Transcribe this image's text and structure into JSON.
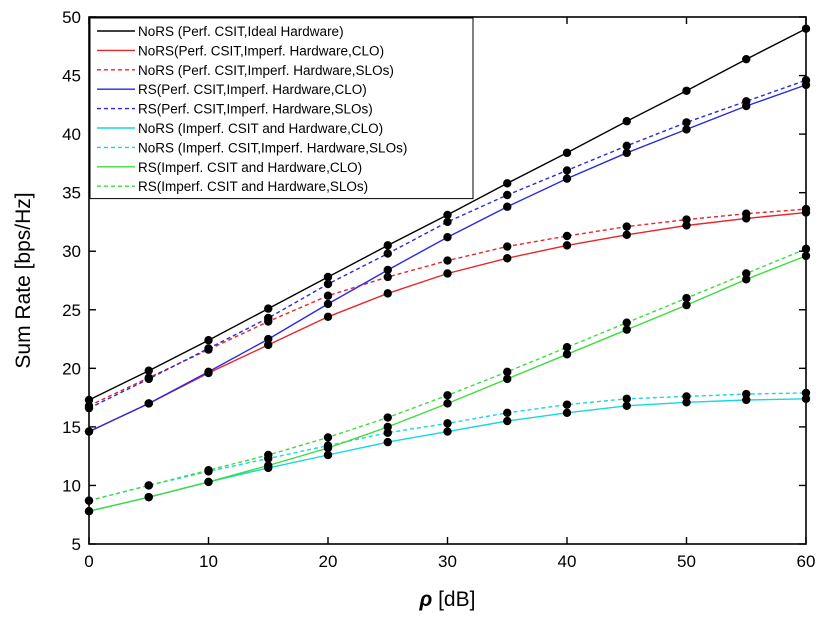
{
  "chart_data": {
    "type": "line",
    "title": "",
    "xlabel_symbol": "ρ",
    "xlabel_unit": " [dB]",
    "ylabel": "Sum Rate [bps/Hz]",
    "xlim": [
      0,
      60
    ],
    "ylim": [
      5,
      50
    ],
    "xticks": [
      0,
      10,
      20,
      30,
      40,
      50,
      60
    ],
    "yticks": [
      5,
      10,
      15,
      20,
      25,
      30,
      35,
      40,
      45,
      50
    ],
    "grid": false,
    "legend_position": "top-left",
    "x": [
      0,
      5,
      10,
      15,
      20,
      25,
      30,
      35,
      40,
      45,
      50,
      55,
      60
    ],
    "series": [
      {
        "name": "NoRS (Perf. CSIT,Ideal Hardware)",
        "color": "#000000",
        "dash": "solid",
        "values": [
          17.3,
          19.8,
          22.4,
          25.1,
          27.8,
          30.5,
          33.1,
          35.8,
          38.4,
          41.1,
          43.7,
          46.4,
          49.0
        ]
      },
      {
        "name": "NoRS(Perf. CSIT,Imperf. Hardware,CLO)",
        "color": "#e8262a",
        "dash": "solid",
        "values": [
          14.6,
          17.0,
          19.6,
          22.0,
          24.4,
          26.4,
          28.1,
          29.4,
          30.5,
          31.4,
          32.2,
          32.8,
          33.3
        ]
      },
      {
        "name": "NoRS (Perf. CSIT,Imperf. Hardware,SLOs)",
        "color": "#e8262a",
        "dash": "dotted",
        "values": [
          16.8,
          19.2,
          21.6,
          24.0,
          26.2,
          27.8,
          29.2,
          30.4,
          31.3,
          32.1,
          32.7,
          33.2,
          33.6
        ]
      },
      {
        "name": "RS(Perf. CSIT,Imperf. Hardware,CLO)",
        "color": "#2a2ae0",
        "dash": "solid",
        "values": [
          14.6,
          17.0,
          19.7,
          22.5,
          25.5,
          28.4,
          31.2,
          33.8,
          36.2,
          38.4,
          40.4,
          42.4,
          44.2
        ]
      },
      {
        "name": "RS(Perf. CSIT,Imperf. Hardware,SLOs)",
        "color": "#2a2ae0",
        "dash": "dotted",
        "values": [
          16.6,
          19.1,
          21.7,
          24.3,
          27.2,
          29.8,
          32.5,
          34.8,
          36.9,
          39.0,
          41.0,
          42.8,
          44.6
        ]
      },
      {
        "name": "NoRS (Imperf. CSIT and Hardware,CLO)",
        "color": "#17d8e0",
        "dash": "solid",
        "values": [
          7.8,
          9.0,
          10.3,
          11.5,
          12.6,
          13.7,
          14.6,
          15.5,
          16.2,
          16.8,
          17.1,
          17.3,
          17.4
        ]
      },
      {
        "name": "NoRS (Imperf. CSIT,Imperf. Hardware,SLOs)",
        "color": "#17d8e0",
        "dash": "dotted",
        "values": [
          8.7,
          10.0,
          11.2,
          12.3,
          13.4,
          14.5,
          15.3,
          16.2,
          16.9,
          17.4,
          17.6,
          17.8,
          17.9
        ]
      },
      {
        "name": "RS(Imperf. CSIT and Hardware,CLO)",
        "color": "#3fdc3f",
        "dash": "solid",
        "values": [
          7.8,
          9.0,
          10.3,
          11.7,
          13.2,
          15.0,
          17.0,
          19.1,
          21.2,
          23.3,
          25.4,
          27.6,
          29.6
        ]
      },
      {
        "name": "RS(Imperf. CSIT and Hardware,SLOs)",
        "color": "#3fdc3f",
        "dash": "dotted",
        "values": [
          8.7,
          10.0,
          11.3,
          12.6,
          14.1,
          15.8,
          17.7,
          19.7,
          21.8,
          23.9,
          26.0,
          28.1,
          30.2
        ]
      }
    ]
  }
}
